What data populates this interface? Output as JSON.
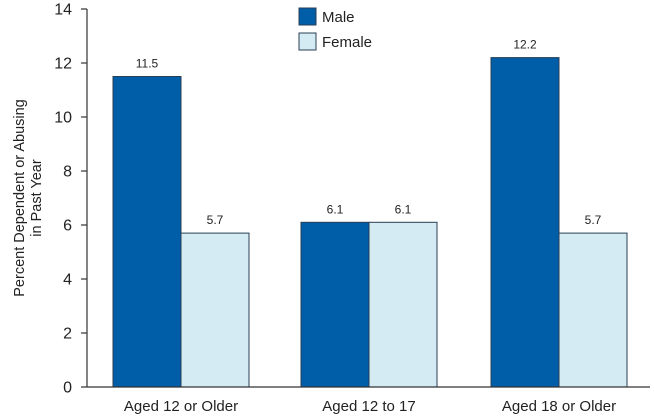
{
  "chart_data": {
    "type": "bar",
    "title": "",
    "xlabel": "",
    "ylabel": "Percent Dependent or Abusing in Past Year",
    "ylabel_lines": [
      "Percent Dependent or Abusing",
      "in Past Year"
    ],
    "categories": [
      "Aged 12 or Older",
      "Aged 12 to 17",
      "Aged 18 or Older"
    ],
    "series": [
      {
        "name": "Male",
        "values": [
          11.5,
          6.1,
          12.2
        ],
        "labels": [
          "11.5",
          "6.1",
          "12.2"
        ],
        "color": "#005da8"
      },
      {
        "name": "Female",
        "values": [
          5.7,
          6.1,
          5.7
        ],
        "labels": [
          "5.7",
          "6.1",
          "5.7"
        ],
        "color": "#d5ebf3"
      }
    ],
    "ylim": [
      0,
      14
    ],
    "yticks": [
      0,
      2,
      4,
      6,
      8,
      10,
      12,
      14
    ],
    "grid": false,
    "legend": "top-center"
  }
}
